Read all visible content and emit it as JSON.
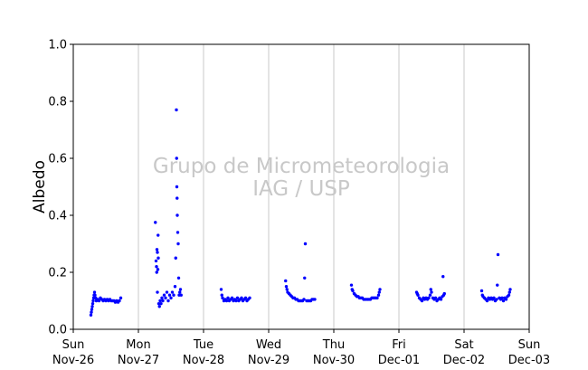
{
  "chart_data": {
    "type": "scatter",
    "ylabel": "Albedo",
    "ylim": [
      0,
      1.0
    ],
    "yticks": [
      "0.0",
      "0.2",
      "0.4",
      "0.6",
      "0.8",
      "1.0"
    ],
    "xlim": [
      "2017-11-26",
      "2017-12-03"
    ],
    "xticks": [
      {
        "day": "Sun",
        "date": "Nov-26"
      },
      {
        "day": "Mon",
        "date": "Nov-27"
      },
      {
        "day": "Tue",
        "date": "Nov-28"
      },
      {
        "day": "Wed",
        "date": "Nov-29"
      },
      {
        "day": "Thu",
        "date": "Nov-30"
      },
      {
        "day": "Fri",
        "date": "Dec-01"
      },
      {
        "day": "Sat",
        "date": "Dec-02"
      },
      {
        "day": "Sun",
        "date": "Dec-03"
      }
    ],
    "grid": "vertical",
    "marker_color": "#0000ff",
    "watermark": [
      "Grupo de Micrometeorologia",
      "IAG / USP"
    ],
    "series": [
      {
        "points": [
          [
            "2017-11-26 06:30",
            0.05
          ],
          [
            "2017-11-26 06:40",
            0.06
          ],
          [
            "2017-11-26 06:50",
            0.07
          ],
          [
            "2017-11-26 07:00",
            0.08
          ],
          [
            "2017-11-26 07:10",
            0.09
          ],
          [
            "2017-11-26 07:20",
            0.1
          ],
          [
            "2017-11-26 07:30",
            0.11
          ],
          [
            "2017-11-26 07:40",
            0.12
          ],
          [
            "2017-11-26 07:50",
            0.13
          ],
          [
            "2017-11-26 08:00",
            0.12
          ],
          [
            "2017-11-26 08:15",
            0.11
          ],
          [
            "2017-11-26 08:30",
            0.1
          ],
          [
            "2017-11-26 09:00",
            0.105
          ],
          [
            "2017-11-26 09:30",
            0.1
          ],
          [
            "2017-11-26 10:00",
            0.11
          ],
          [
            "2017-11-26 10:30",
            0.105
          ],
          [
            "2017-11-26 11:00",
            0.1
          ],
          [
            "2017-11-26 11:30",
            0.105
          ],
          [
            "2017-11-26 12:00",
            0.1
          ],
          [
            "2017-11-26 12:30",
            0.105
          ],
          [
            "2017-11-26 13:00",
            0.1
          ],
          [
            "2017-11-26 13:30",
            0.105
          ],
          [
            "2017-11-26 14:00",
            0.1
          ],
          [
            "2017-11-26 14:30",
            0.1
          ],
          [
            "2017-11-26 15:00",
            0.1
          ],
          [
            "2017-11-26 15:30",
            0.095
          ],
          [
            "2017-11-26 16:00",
            0.1
          ],
          [
            "2017-11-26 16:30",
            0.095
          ],
          [
            "2017-11-26 17:00",
            0.1
          ],
          [
            "2017-11-26 17:30",
            0.11
          ],
          [
            "2017-11-27 06:15",
            0.375
          ],
          [
            "2017-11-27 06:30",
            0.24
          ],
          [
            "2017-11-27 06:40",
            0.22
          ],
          [
            "2017-11-27 06:45",
            0.2
          ],
          [
            "2017-11-27 06:50",
            0.28
          ],
          [
            "2017-11-27 07:00",
            0.27
          ],
          [
            "2017-11-27 07:10",
            0.21
          ],
          [
            "2017-11-27 07:15",
            0.33
          ],
          [
            "2017-11-27 07:20",
            0.25
          ],
          [
            "2017-11-27 07:00",
            0.13
          ],
          [
            "2017-11-27 07:30",
            0.09
          ],
          [
            "2017-11-27 07:45",
            0.08
          ],
          [
            "2017-11-27 08:00",
            0.1
          ],
          [
            "2017-11-27 08:20",
            0.09
          ],
          [
            "2017-11-27 08:40",
            0.11
          ],
          [
            "2017-11-27 09:00",
            0.1
          ],
          [
            "2017-11-27 09:30",
            0.12
          ],
          [
            "2017-11-27 10:00",
            0.11
          ],
          [
            "2017-11-27 10:30",
            0.13
          ],
          [
            "2017-11-27 11:00",
            0.1
          ],
          [
            "2017-11-27 11:30",
            0.12
          ],
          [
            "2017-11-27 12:00",
            0.11
          ],
          [
            "2017-11-27 12:30",
            0.13
          ],
          [
            "2017-11-27 13:00",
            0.12
          ],
          [
            "2017-11-27 13:30",
            0.15
          ],
          [
            "2017-11-27 13:45",
            0.25
          ],
          [
            "2017-11-27 14:00",
            0.77
          ],
          [
            "2017-11-27 14:05",
            0.6
          ],
          [
            "2017-11-27 14:10",
            0.5
          ],
          [
            "2017-11-27 14:15",
            0.46
          ],
          [
            "2017-11-27 14:20",
            0.4
          ],
          [
            "2017-11-27 14:30",
            0.34
          ],
          [
            "2017-11-27 14:40",
            0.3
          ],
          [
            "2017-11-27 14:50",
            0.18
          ],
          [
            "2017-11-27 15:00",
            0.12
          ],
          [
            "2017-11-27 15:15",
            0.13
          ],
          [
            "2017-11-27 15:30",
            0.14
          ],
          [
            "2017-11-27 15:45",
            0.12
          ],
          [
            "2017-11-28 06:30",
            0.14
          ],
          [
            "2017-11-28 06:45",
            0.12
          ],
          [
            "2017-11-28 07:00",
            0.11
          ],
          [
            "2017-11-28 07:30",
            0.1
          ],
          [
            "2017-11-28 08:00",
            0.105
          ],
          [
            "2017-11-28 08:30",
            0.1
          ],
          [
            "2017-11-28 09:00",
            0.11
          ],
          [
            "2017-11-28 09:30",
            0.1
          ],
          [
            "2017-11-28 10:00",
            0.105
          ],
          [
            "2017-11-28 10:30",
            0.11
          ],
          [
            "2017-11-28 11:00",
            0.1
          ],
          [
            "2017-11-28 11:30",
            0.105
          ],
          [
            "2017-11-28 12:00",
            0.1
          ],
          [
            "2017-11-28 12:30",
            0.11
          ],
          [
            "2017-11-28 13:00",
            0.1
          ],
          [
            "2017-11-28 13:30",
            0.105
          ],
          [
            "2017-11-28 14:00",
            0.11
          ],
          [
            "2017-11-28 14:30",
            0.1
          ],
          [
            "2017-11-28 15:00",
            0.105
          ],
          [
            "2017-11-28 15:30",
            0.11
          ],
          [
            "2017-11-28 16:00",
            0.1
          ],
          [
            "2017-11-28 16:30",
            0.105
          ],
          [
            "2017-11-28 17:00",
            0.11
          ],
          [
            "2017-11-29 06:15",
            0.17
          ],
          [
            "2017-11-29 06:30",
            0.15
          ],
          [
            "2017-11-29 06:45",
            0.14
          ],
          [
            "2017-11-29 07:00",
            0.13
          ],
          [
            "2017-11-29 07:30",
            0.125
          ],
          [
            "2017-11-29 08:00",
            0.12
          ],
          [
            "2017-11-29 08:30",
            0.115
          ],
          [
            "2017-11-29 09:00",
            0.11
          ],
          [
            "2017-11-29 09:30",
            0.11
          ],
          [
            "2017-11-29 10:00",
            0.105
          ],
          [
            "2017-11-29 10:30",
            0.105
          ],
          [
            "2017-11-29 11:00",
            0.1
          ],
          [
            "2017-11-29 11:30",
            0.1
          ],
          [
            "2017-11-29 12:00",
            0.1
          ],
          [
            "2017-11-29 12:30",
            0.1
          ],
          [
            "2017-11-29 13:00",
            0.105
          ],
          [
            "2017-11-29 13:15",
            0.18
          ],
          [
            "2017-11-29 13:30",
            0.3
          ],
          [
            "2017-11-29 14:00",
            0.1
          ],
          [
            "2017-11-29 14:30",
            0.1
          ],
          [
            "2017-11-29 15:00",
            0.1
          ],
          [
            "2017-11-29 15:30",
            0.1
          ],
          [
            "2017-11-29 16:00",
            0.105
          ],
          [
            "2017-11-29 16:30",
            0.105
          ],
          [
            "2017-11-29 17:00",
            0.105
          ],
          [
            "2017-11-30 06:30",
            0.155
          ],
          [
            "2017-11-30 06:45",
            0.14
          ],
          [
            "2017-11-30 07:00",
            0.135
          ],
          [
            "2017-11-30 07:30",
            0.125
          ],
          [
            "2017-11-30 08:00",
            0.12
          ],
          [
            "2017-11-30 08:30",
            0.115
          ],
          [
            "2017-11-30 09:00",
            0.115
          ],
          [
            "2017-11-30 09:30",
            0.11
          ],
          [
            "2017-11-30 10:00",
            0.11
          ],
          [
            "2017-11-30 10:30",
            0.11
          ],
          [
            "2017-11-30 11:00",
            0.105
          ],
          [
            "2017-11-30 11:30",
            0.105
          ],
          [
            "2017-11-30 12:00",
            0.105
          ],
          [
            "2017-11-30 12:30",
            0.105
          ],
          [
            "2017-11-30 13:00",
            0.105
          ],
          [
            "2017-11-30 13:30",
            0.105
          ],
          [
            "2017-11-30 14:00",
            0.11
          ],
          [
            "2017-11-30 14:30",
            0.11
          ],
          [
            "2017-11-30 15:00",
            0.11
          ],
          [
            "2017-11-30 15:30",
            0.11
          ],
          [
            "2017-11-30 16:00",
            0.11
          ],
          [
            "2017-11-30 16:30",
            0.12
          ],
          [
            "2017-11-30 16:45",
            0.13
          ],
          [
            "2017-11-30 17:00",
            0.14
          ],
          [
            "2017-12-01 06:30",
            0.13
          ],
          [
            "2017-12-01 06:45",
            0.125
          ],
          [
            "2017-12-01 07:00",
            0.12
          ],
          [
            "2017-12-01 07:30",
            0.11
          ],
          [
            "2017-12-01 08:00",
            0.105
          ],
          [
            "2017-12-01 08:30",
            0.1
          ],
          [
            "2017-12-01 09:00",
            0.11
          ],
          [
            "2017-12-01 09:30",
            0.105
          ],
          [
            "2017-12-01 10:00",
            0.11
          ],
          [
            "2017-12-01 10:30",
            0.105
          ],
          [
            "2017-12-01 11:00",
            0.11
          ],
          [
            "2017-12-01 11:30",
            0.12
          ],
          [
            "2017-12-01 11:45",
            0.14
          ],
          [
            "2017-12-01 12:00",
            0.13
          ],
          [
            "2017-12-01 12:30",
            0.11
          ],
          [
            "2017-12-01 13:00",
            0.105
          ],
          [
            "2017-12-01 13:30",
            0.11
          ],
          [
            "2017-12-01 14:00",
            0.1
          ],
          [
            "2017-12-01 14:30",
            0.105
          ],
          [
            "2017-12-01 15:00",
            0.11
          ],
          [
            "2017-12-01 15:30",
            0.105
          ],
          [
            "2017-12-01 16:00",
            0.115
          ],
          [
            "2017-12-01 16:15",
            0.185
          ],
          [
            "2017-12-01 16:30",
            0.12
          ],
          [
            "2017-12-01 16:45",
            0.125
          ],
          [
            "2017-12-02 06:30",
            0.135
          ],
          [
            "2017-12-02 06:45",
            0.12
          ],
          [
            "2017-12-02 07:00",
            0.115
          ],
          [
            "2017-12-02 07:30",
            0.11
          ],
          [
            "2017-12-02 08:00",
            0.105
          ],
          [
            "2017-12-02 08:30",
            0.1
          ],
          [
            "2017-12-02 09:00",
            0.11
          ],
          [
            "2017-12-02 09:30",
            0.105
          ],
          [
            "2017-12-02 10:00",
            0.11
          ],
          [
            "2017-12-02 10:30",
            0.105
          ],
          [
            "2017-12-02 11:00",
            0.11
          ],
          [
            "2017-12-02 11:30",
            0.1
          ],
          [
            "2017-12-02 12:00",
            0.105
          ],
          [
            "2017-12-02 12:15",
            0.155
          ],
          [
            "2017-12-02 12:30",
            0.262
          ],
          [
            "2017-12-02 13:00",
            0.11
          ],
          [
            "2017-12-02 13:30",
            0.105
          ],
          [
            "2017-12-02 14:00",
            0.11
          ],
          [
            "2017-12-02 14:30",
            0.1
          ],
          [
            "2017-12-02 15:00",
            0.11
          ],
          [
            "2017-12-02 15:30",
            0.105
          ],
          [
            "2017-12-02 16:00",
            0.115
          ],
          [
            "2017-12-02 16:30",
            0.12
          ],
          [
            "2017-12-02 16:45",
            0.13
          ],
          [
            "2017-12-02 17:00",
            0.14
          ]
        ]
      }
    ]
  }
}
